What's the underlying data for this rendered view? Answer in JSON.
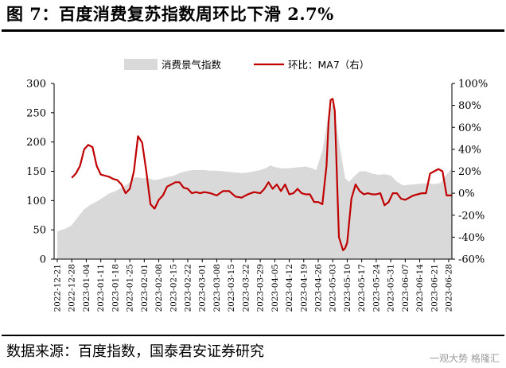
{
  "title": "图 7：百度消费复苏指数周环比下滑 2.7%",
  "source": "数据来源：百度指数，国泰君安证券研究",
  "watermark": "一观大势  格隆汇",
  "chart_data": {
    "type": "area",
    "legend_position": "top",
    "grid": false,
    "categories": [
      "2022-12-21",
      "2022-12-28",
      "2023-01-04",
      "2023-01-11",
      "2023-01-18",
      "2023-01-25",
      "2023-02-01",
      "2023-02-08",
      "2023-02-15",
      "2023-02-22",
      "2023-03-01",
      "2023-03-08",
      "2023-03-15",
      "2023-03-22",
      "2023-03-29",
      "2023-04-05",
      "2023-04-12",
      "2023-04-19",
      "2023-04-26",
      "2023-05-03",
      "2023-05-10",
      "2023-05-17",
      "2023-05-24",
      "2023-05-31",
      "2023-06-07",
      "2023-06-14",
      "2023-06-21",
      "2023-06-28"
    ],
    "y_left": {
      "ylim": [
        0,
        300
      ],
      "ticks": [
        "0",
        "50",
        "100",
        "150",
        "200",
        "250",
        "300"
      ]
    },
    "y_right": {
      "ylim": [
        -60,
        100
      ],
      "ticks": [
        "-60%",
        "-40%",
        "-20%",
        "0%",
        "20%",
        "40%",
        "60%",
        "80%",
        "100%"
      ]
    },
    "series": [
      {
        "name": "消费景气指数",
        "type": "area",
        "axis": "left",
        "color": "#d9d9d9",
        "x": [
          "2022-12-21",
          "2022-12-23",
          "2022-12-25",
          "2022-12-28",
          "2022-12-31",
          "2023-01-03",
          "2023-01-06",
          "2023-01-09",
          "2023-01-12",
          "2023-01-15",
          "2023-01-18",
          "2023-01-21",
          "2023-01-24",
          "2023-01-26",
          "2023-01-28",
          "2023-01-31",
          "2023-02-03",
          "2023-02-06",
          "2023-02-09",
          "2023-02-12",
          "2023-02-15",
          "2023-02-18",
          "2023-02-21",
          "2023-02-24",
          "2023-02-27",
          "2023-03-02",
          "2023-03-05",
          "2023-03-08",
          "2023-03-11",
          "2023-03-14",
          "2023-03-17",
          "2023-03-20",
          "2023-03-23",
          "2023-03-26",
          "2023-03-29",
          "2023-04-01",
          "2023-04-03",
          "2023-04-05",
          "2023-04-08",
          "2023-04-11",
          "2023-04-14",
          "2023-04-17",
          "2023-04-20",
          "2023-04-23",
          "2023-04-25",
          "2023-04-28",
          "2023-05-01",
          "2023-05-03",
          "2023-05-05",
          "2023-05-07",
          "2023-05-09",
          "2023-05-11",
          "2023-05-13",
          "2023-05-16",
          "2023-05-19",
          "2023-05-22",
          "2023-05-25",
          "2023-05-28",
          "2023-05-31",
          "2023-06-03",
          "2023-06-06",
          "2023-06-09",
          "2023-06-12",
          "2023-06-15",
          "2023-06-18",
          "2023-06-21",
          "2023-06-24",
          "2023-06-27",
          "2023-06-30",
          "2023-07-02"
        ],
        "values": [
          47,
          50,
          52,
          58,
          72,
          85,
          93,
          98,
          105,
          112,
          116,
          122,
          128,
          136,
          140,
          138,
          138,
          135,
          137,
          140,
          142,
          147,
          150,
          152,
          152,
          152,
          151,
          151,
          150,
          149,
          148,
          147,
          148,
          150,
          152,
          156,
          160,
          157,
          155,
          155,
          156,
          157,
          158,
          155,
          152,
          185,
          248,
          265,
          225,
          180,
          138,
          132,
          140,
          150,
          150,
          146,
          144,
          145,
          143,
          132,
          126,
          127,
          128,
          129,
          130,
          128,
          130,
          145,
          155,
          155
        ]
      },
      {
        "name": "环比：MA7（右）",
        "type": "line",
        "axis": "right",
        "color": "#c00000",
        "x": [
          "2022-12-28",
          "2022-12-30",
          "2023-01-01",
          "2023-01-03",
          "2023-01-05",
          "2023-01-07",
          "2023-01-09",
          "2023-01-11",
          "2023-01-13",
          "2023-01-15",
          "2023-01-17",
          "2023-01-19",
          "2023-01-21",
          "2023-01-23",
          "2023-01-25",
          "2023-01-27",
          "2023-01-29",
          "2023-01-31",
          "2023-02-02",
          "2023-02-04",
          "2023-02-06",
          "2023-02-08",
          "2023-02-10",
          "2023-02-12",
          "2023-02-14",
          "2023-02-16",
          "2023-02-18",
          "2023-02-20",
          "2023-02-22",
          "2023-02-24",
          "2023-02-26",
          "2023-02-28",
          "2023-03-02",
          "2023-03-05",
          "2023-03-08",
          "2023-03-11",
          "2023-03-14",
          "2023-03-17",
          "2023-03-20",
          "2023-03-23",
          "2023-03-26",
          "2023-03-29",
          "2023-03-31",
          "2023-04-02",
          "2023-04-04",
          "2023-04-06",
          "2023-04-08",
          "2023-04-10",
          "2023-04-12",
          "2023-04-14",
          "2023-04-16",
          "2023-04-18",
          "2023-04-20",
          "2023-04-22",
          "2023-04-24",
          "2023-04-26",
          "2023-04-28",
          "2023-04-30",
          "2023-05-01",
          "2023-05-02",
          "2023-05-03",
          "2023-05-04",
          "2023-05-06",
          "2023-05-08",
          "2023-05-09",
          "2023-05-10",
          "2023-05-12",
          "2023-05-14",
          "2023-05-16",
          "2023-05-18",
          "2023-05-20",
          "2023-05-22",
          "2023-05-24",
          "2023-05-26",
          "2023-05-28",
          "2023-05-30",
          "2023-06-01",
          "2023-06-03",
          "2023-06-05",
          "2023-06-07",
          "2023-06-09",
          "2023-06-11",
          "2023-06-13",
          "2023-06-15",
          "2023-06-17",
          "2023-06-19",
          "2023-06-21",
          "2023-06-23",
          "2023-06-25",
          "2023-06-27",
          "2023-06-29",
          "2023-07-01"
        ],
        "values": [
          14,
          18,
          25,
          40,
          44,
          42,
          25,
          17,
          16,
          15,
          13,
          12,
          8,
          0,
          4,
          20,
          52,
          46,
          20,
          -10,
          -14,
          -6,
          -2,
          6,
          8,
          10,
          10,
          5,
          4,
          0,
          1,
          0,
          1,
          0,
          -2,
          2,
          2,
          -3,
          -4,
          -1,
          1,
          0,
          4,
          10,
          4,
          8,
          2,
          8,
          -1,
          0,
          4,
          0,
          -1,
          -1,
          -8,
          -8,
          -10,
          25,
          65,
          85,
          86,
          75,
          -40,
          -52,
          -50,
          -45,
          -5,
          8,
          2,
          -1,
          0,
          -1,
          -1,
          0,
          -11,
          -8,
          0,
          0,
          -5,
          -6,
          -4,
          -2,
          -1,
          0,
          0,
          18,
          20,
          22,
          20,
          -2,
          -2,
          -2
        ]
      }
    ]
  }
}
